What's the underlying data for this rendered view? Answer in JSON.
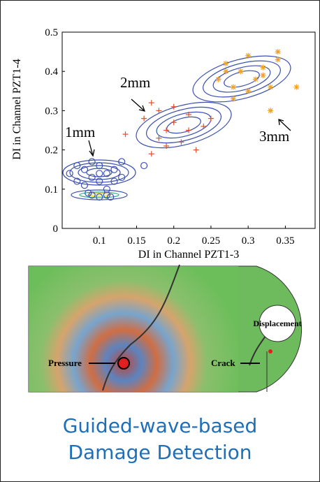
{
  "chart_data": {
    "type": "scatter",
    "xlabel": "DI in Channel PZT1-3",
    "ylabel": "DI in Channel PZT1-4",
    "xlim": [
      0.05,
      0.39
    ],
    "ylim": [
      0,
      0.5
    ],
    "xticks": [
      0.1,
      0.15,
      0.2,
      0.25,
      0.3,
      0.35
    ],
    "yticks": [
      0,
      0.1,
      0.2,
      0.3,
      0.4,
      0.5
    ],
    "annotations": [
      "1mm",
      "2mm",
      "3mm"
    ],
    "series": [
      {
        "color": "#3a4fb0",
        "marker": "circle",
        "x": [
          0.06,
          0.07,
          0.08,
          0.09,
          0.1,
          0.1,
          0.11,
          0.12,
          0.13,
          0.08,
          0.09,
          0.11,
          0.12,
          0.07,
          0.1,
          0.13,
          0.16,
          0.09,
          0.11,
          0.085,
          0.1,
          0.115
        ],
        "y": [
          0.14,
          0.12,
          0.15,
          0.13,
          0.16,
          0.12,
          0.14,
          0.15,
          0.13,
          0.11,
          0.17,
          0.1,
          0.12,
          0.16,
          0.14,
          0.17,
          0.16,
          0.085,
          0.085,
          0.09,
          0.08,
          0.08
        ]
      },
      {
        "color": "#e2522c",
        "marker": "plus",
        "x": [
          0.135,
          0.16,
          0.17,
          0.18,
          0.19,
          0.2,
          0.21,
          0.22,
          0.23,
          0.24,
          0.18,
          0.2,
          0.22,
          0.17,
          0.25,
          0.19
        ],
        "y": [
          0.24,
          0.28,
          0.19,
          0.3,
          0.25,
          0.27,
          0.22,
          0.29,
          0.2,
          0.26,
          0.23,
          0.31,
          0.25,
          0.32,
          0.28,
          0.21
        ]
      },
      {
        "color": "#f0a02c",
        "marker": "asterisk",
        "x": [
          0.26,
          0.27,
          0.28,
          0.29,
          0.3,
          0.31,
          0.32,
          0.33,
          0.34,
          0.365,
          0.28,
          0.3,
          0.32,
          0.34,
          0.33,
          0.27
        ],
        "y": [
          0.38,
          0.42,
          0.36,
          0.4,
          0.44,
          0.38,
          0.41,
          0.3,
          0.43,
          0.36,
          0.33,
          0.35,
          0.39,
          0.45,
          0.36,
          0.4
        ]
      }
    ]
  },
  "figure": {
    "labels": [
      "Pressure",
      "Crack",
      "Displacement"
    ]
  },
  "caption": {
    "lines": [
      "Guided-wave-based",
      "Damage Detection"
    ]
  }
}
